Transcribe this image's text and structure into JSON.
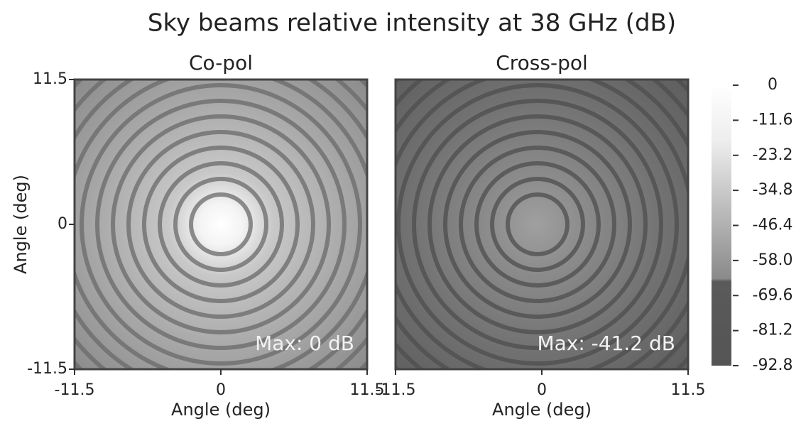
{
  "chart_data": {
    "type": "heatmap",
    "title": "Sky beams relative intensity at 38 GHz (dB)",
    "xlabel": "Angle (deg)",
    "ylabel": "Angle (deg)",
    "xlim": [
      -11.5,
      11.5
    ],
    "ylim": [
      -11.5,
      11.5
    ],
    "xticks": [
      -11.5,
      0,
      11.5
    ],
    "yticks": [
      -11.5,
      0,
      11.5
    ],
    "subplots": [
      {
        "title": "Co-pol",
        "annotation": "Max: 0 dB"
      },
      {
        "title": "Cross-pol",
        "annotation": "Max: -41.2 dB"
      }
    ],
    "colorbar": {
      "lim": [
        -92.8,
        0
      ],
      "ticks": [
        0,
        -11.6,
        -23.2,
        -34.8,
        -46.4,
        {
          "value": -58,
          "label": "-58.0"
        },
        -69.6,
        -81.2,
        -92.8
      ]
    }
  }
}
